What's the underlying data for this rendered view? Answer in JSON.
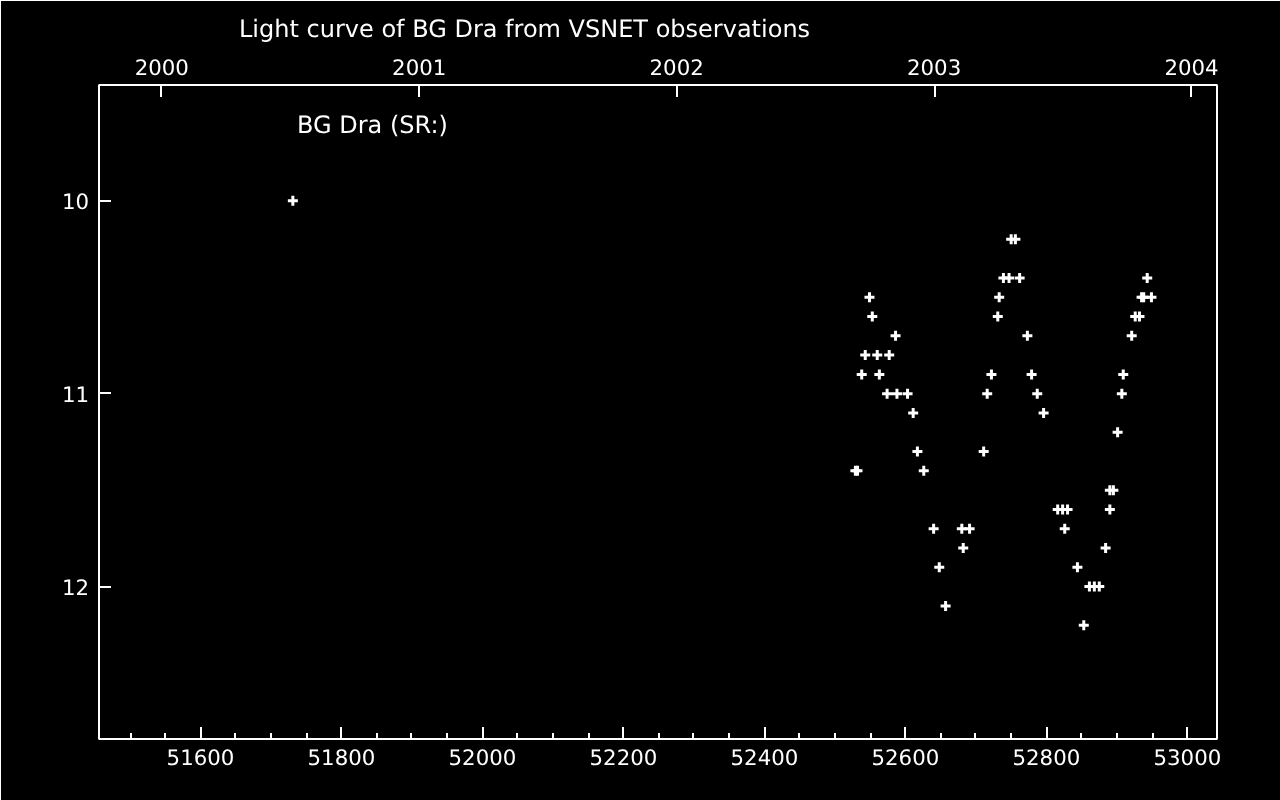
{
  "chart_data": {
    "type": "scatter",
    "title": "Light curve of BG Dra from VSNET observations",
    "annotations": [
      "BG Dra (SR:)"
    ],
    "x": [
      51731,
      52750,
      52756,
      52739,
      52747,
      52762,
      52733,
      52731,
      52773,
      52722,
      52779,
      52716,
      52787,
      52796,
      52901,
      52549,
      52553,
      52586,
      52543,
      52560,
      52577,
      52538,
      52563,
      52574,
      52588,
      52603,
      52611,
      52943,
      52935,
      52938,
      52949,
      52926,
      52932,
      52921,
      52909,
      52907,
      52617,
      52711,
      52529,
      52532,
      52626,
      52890,
      52895,
      52816,
      52823,
      52830,
      52890,
      52640,
      52680,
      52691,
      52826,
      52682,
      52884,
      52648,
      52844,
      52861,
      52868,
      52875,
      52657,
      52853
    ],
    "series": [
      {
        "color": "#ffffff",
        "values": [
          10.0,
          10.2,
          10.2,
          10.4,
          10.4,
          10.4,
          10.5,
          10.6,
          10.7,
          10.9,
          10.9,
          11.0,
          11.0,
          11.1,
          11.2,
          10.5,
          10.6,
          10.7,
          10.8,
          10.8,
          10.8,
          10.9,
          10.9,
          11.0,
          11.0,
          11.0,
          11.1,
          10.4,
          10.5,
          10.5,
          10.5,
          10.6,
          10.6,
          10.7,
          10.9,
          11.0,
          11.3,
          11.3,
          11.4,
          11.4,
          11.4,
          11.5,
          11.5,
          11.6,
          11.6,
          11.6,
          11.6,
          11.7,
          11.7,
          11.7,
          11.7,
          11.8,
          11.8,
          11.9,
          11.9,
          12.0,
          12.0,
          12.0,
          12.1,
          12.2
        ]
      }
    ],
    "xlim": [
      51456,
      53042
    ],
    "xticks": [
      51600,
      51800,
      52000,
      52200,
      52400,
      52600,
      52800,
      53000
    ],
    "ylim": [
      12.79,
      9.4
    ],
    "yticks": [
      10,
      11,
      12
    ],
    "x2lim": [
      1999.756,
      2004.099
    ],
    "x2ticks": [
      2000,
      2001,
      2002,
      2003,
      2004
    ],
    "marker": "cross",
    "grid": false
  }
}
